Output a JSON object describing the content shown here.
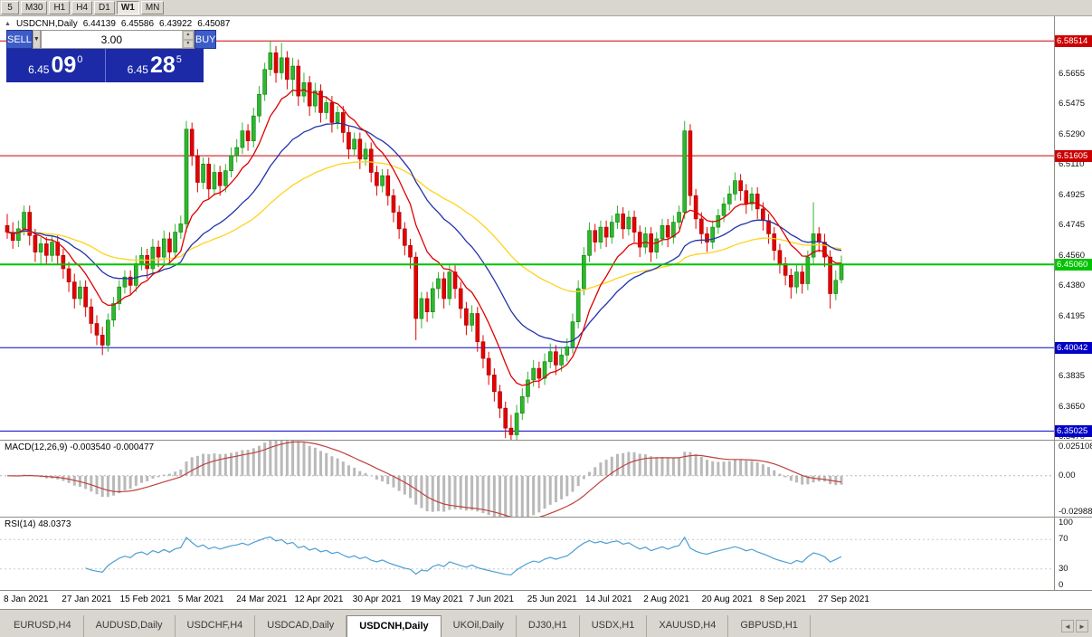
{
  "toolbar": {
    "timeframes": [
      "5",
      "M30",
      "H1",
      "H4",
      "D1",
      "W1",
      "MN"
    ],
    "active": "W1"
  },
  "chart_header": {
    "collapse_icon": "▲",
    "symbol": "USDCNH,Daily",
    "open": "6.44139",
    "high": "6.45586",
    "low": "6.43922",
    "close": "6.45087"
  },
  "trade_panel": {
    "sell_label": "SELL",
    "buy_label": "BUY",
    "volume": "3.00",
    "sell_price": {
      "base": "6.45",
      "big": "09",
      "sup": "0"
    },
    "buy_price": {
      "base": "6.45",
      "big": "28",
      "sup": "5"
    }
  },
  "icons": {
    "dropdown": "▼",
    "spin_up": "▲",
    "spin_down": "▼",
    "scroll_left": "◄",
    "scroll_right": "►"
  },
  "levels": [
    {
      "price": 6.58514,
      "label": "6.58514",
      "color": "#cc0000",
      "width": 1
    },
    {
      "price": 6.51605,
      "label": "6.51605",
      "color": "#cc0000",
      "width": 1
    },
    {
      "price": 6.4506,
      "label": "6.45060",
      "color": "#00c400",
      "width": 2,
      "top": true
    },
    {
      "price": 6.40042,
      "label": "6.40042",
      "color": "#0000c8",
      "width": 1
    },
    {
      "price": 6.35025,
      "label": "6.35025",
      "color": "#0000c8",
      "width": 1
    }
  ],
  "price_axis": {
    "ticks": [
      "6.5655",
      "6.5475",
      "6.5290",
      "6.5110",
      "6.4925",
      "6.4745",
      "6.4560",
      "6.4380",
      "6.4195",
      "6.3835",
      "6.3650",
      "6.3470"
    ]
  },
  "macd_panel": {
    "label": "MACD(12,26,9) -0.003540 -0.000477",
    "params": [
      12,
      26,
      9
    ],
    "values": [
      "-0.003540",
      "-0.000477"
    ],
    "scale": [
      -0.02988,
      0.025108
    ],
    "axis_labels": [
      {
        "v": 0.025108,
        "label": "0.025108"
      },
      {
        "v": 0,
        "label": "0.00"
      },
      {
        "v": -0.02988,
        "label": "-0.02988"
      }
    ],
    "histogram_color": "#b9b9b9",
    "signal_color": "#c04040"
  },
  "rsi_panel": {
    "label": "RSI(14) 48.0373",
    "period": 14,
    "value": "48.0373",
    "levels": [
      70,
      30
    ],
    "axis_labels": [
      {
        "v": 100,
        "label": "100"
      },
      {
        "v": 70,
        "label": "70"
      },
      {
        "v": 30,
        "label": "30"
      },
      {
        "v": 0,
        "label": "0"
      }
    ],
    "line_color": "#4b9fd4"
  },
  "date_axis": [
    "8 Jan 2021",
    "27 Jan 2021",
    "15 Feb 2021",
    "5 Mar 2021",
    "24 Mar 2021",
    "12 Apr 2021",
    "30 Apr 2021",
    "19 May 2021",
    "7 Jun 2021",
    "25 Jun 2021",
    "14 Jul 2021",
    "2 Aug 2021",
    "20 Aug 2021",
    "8 Sep 2021",
    "27 Sep 2021"
  ],
  "tabs": {
    "items": [
      "EURUSD,H4",
      "AUDUSD,Daily",
      "USDCHF,H4",
      "USDCAD,Daily",
      "USDCNH,Daily",
      "UKOil,Daily",
      "DJ30,H1",
      "USDX,H1",
      "XAUUSD,H4",
      "GBPUSD,H1"
    ],
    "active": "USDCNH,Daily"
  },
  "chart_data": {
    "type": "candlestick",
    "symbol": "USDCNH",
    "period": "Daily",
    "title": "USDCNH,Daily",
    "ylim": [
      6.345,
      6.6
    ],
    "up_color": "#2eb82e",
    "up_border": "#0b7a0b",
    "down_color": "#e60000",
    "down_border": "#990000",
    "moving_averages": [
      {
        "period": 55,
        "color": "#ffd21e"
      },
      {
        "period": 25,
        "color": "#2233aa"
      },
      {
        "period": 10,
        "color": "#e00000"
      }
    ],
    "candles": [
      [
        6.474,
        6.481,
        6.466,
        6.47
      ],
      [
        6.47,
        6.476,
        6.46,
        6.465
      ],
      [
        6.465,
        6.477,
        6.461,
        6.472
      ],
      [
        6.472,
        6.486,
        6.468,
        6.482
      ],
      [
        6.482,
        6.486,
        6.462,
        6.468
      ],
      [
        6.468,
        6.472,
        6.452,
        6.458
      ],
      [
        6.458,
        6.467,
        6.45,
        6.463
      ],
      [
        6.463,
        6.467,
        6.451,
        6.456
      ],
      [
        6.456,
        6.468,
        6.452,
        6.464
      ],
      [
        6.464,
        6.468,
        6.45,
        6.456
      ],
      [
        6.456,
        6.46,
        6.442,
        6.448
      ],
      [
        6.448,
        6.452,
        6.434,
        6.44
      ],
      [
        6.44,
        6.445,
        6.424,
        6.43
      ],
      [
        6.43,
        6.441,
        6.426,
        6.437
      ],
      [
        6.437,
        6.441,
        6.419,
        6.425
      ],
      [
        6.425,
        6.43,
        6.409,
        6.415
      ],
      [
        6.415,
        6.42,
        6.402,
        6.408
      ],
      [
        6.408,
        6.413,
        6.396,
        6.402
      ],
      [
        6.402,
        6.421,
        6.398,
        6.417
      ],
      [
        6.417,
        6.431,
        6.413,
        6.427
      ],
      [
        6.427,
        6.441,
        6.423,
        6.437
      ],
      [
        6.437,
        6.447,
        6.433,
        6.443
      ],
      [
        6.443,
        6.447,
        6.432,
        6.438
      ],
      [
        6.438,
        6.456,
        6.434,
        6.451
      ],
      [
        6.451,
        6.461,
        6.447,
        6.456
      ],
      [
        6.456,
        6.46,
        6.442,
        6.448
      ],
      [
        6.448,
        6.466,
        6.444,
        6.461
      ],
      [
        6.461,
        6.465,
        6.449,
        6.455
      ],
      [
        6.455,
        6.471,
        6.451,
        6.466
      ],
      [
        6.466,
        6.47,
        6.452,
        6.458
      ],
      [
        6.458,
        6.475,
        6.454,
        6.47
      ],
      [
        6.47,
        6.48,
        6.466,
        6.475
      ],
      [
        6.475,
        6.537,
        6.47,
        6.532
      ],
      [
        6.532,
        6.536,
        6.51,
        6.516
      ],
      [
        6.516,
        6.52,
        6.494,
        6.5
      ],
      [
        6.5,
        6.515,
        6.496,
        6.511
      ],
      [
        6.511,
        6.515,
        6.49,
        6.496
      ],
      [
        6.496,
        6.511,
        6.492,
        6.506
      ],
      [
        6.506,
        6.51,
        6.492,
        6.498
      ],
      [
        6.498,
        6.511,
        6.494,
        6.507
      ],
      [
        6.507,
        6.521,
        6.503,
        6.516
      ],
      [
        6.516,
        6.526,
        6.512,
        6.521
      ],
      [
        6.521,
        6.536,
        6.517,
        6.531
      ],
      [
        6.531,
        6.535,
        6.519,
        6.525
      ],
      [
        6.525,
        6.545,
        6.521,
        6.54
      ],
      [
        6.54,
        6.558,
        6.536,
        6.553
      ],
      [
        6.553,
        6.572,
        6.549,
        6.568
      ],
      [
        6.568,
        6.585,
        6.564,
        6.578
      ],
      [
        6.578,
        6.582,
        6.56,
        6.566
      ],
      [
        6.566,
        6.584,
        6.562,
        6.575
      ],
      [
        6.575,
        6.579,
        6.556,
        6.562
      ],
      [
        6.562,
        6.575,
        6.552,
        6.57
      ],
      [
        6.57,
        6.574,
        6.546,
        6.552
      ],
      [
        6.552,
        6.566,
        6.548,
        6.56
      ],
      [
        6.56,
        6.564,
        6.54,
        6.546
      ],
      [
        6.546,
        6.56,
        6.542,
        6.555
      ],
      [
        6.555,
        6.559,
        6.536,
        6.542
      ],
      [
        6.542,
        6.552,
        6.538,
        6.548
      ],
      [
        6.548,
        6.552,
        6.53,
        6.536
      ],
      [
        6.536,
        6.546,
        6.532,
        6.542
      ],
      [
        6.542,
        6.546,
        6.524,
        6.53
      ],
      [
        6.53,
        6.534,
        6.514,
        6.52
      ],
      [
        6.52,
        6.53,
        6.516,
        6.526
      ],
      [
        6.526,
        6.53,
        6.508,
        6.514
      ],
      [
        6.514,
        6.524,
        6.51,
        6.52
      ],
      [
        6.52,
        6.524,
        6.5,
        6.506
      ],
      [
        6.506,
        6.51,
        6.492,
        6.498
      ],
      [
        6.498,
        6.508,
        6.494,
        6.504
      ],
      [
        6.504,
        6.508,
        6.486,
        6.492
      ],
      [
        6.492,
        6.496,
        6.476,
        6.482
      ],
      [
        6.482,
        6.486,
        6.466,
        6.472
      ],
      [
        6.472,
        6.476,
        6.456,
        6.462
      ],
      [
        6.462,
        6.466,
        6.448,
        6.455
      ],
      [
        6.455,
        6.458,
        6.405,
        6.418
      ],
      [
        6.418,
        6.434,
        6.412,
        6.43
      ],
      [
        6.43,
        6.434,
        6.416,
        6.422
      ],
      [
        6.422,
        6.44,
        6.418,
        6.436
      ],
      [
        6.436,
        6.446,
        6.43,
        6.442
      ],
      [
        6.442,
        6.446,
        6.424,
        6.43
      ],
      [
        6.43,
        6.45,
        6.426,
        6.446
      ],
      [
        6.446,
        6.45,
        6.43,
        6.436
      ],
      [
        6.436,
        6.44,
        6.418,
        6.424
      ],
      [
        6.424,
        6.428,
        6.408,
        6.414
      ],
      [
        6.414,
        6.426,
        6.41,
        6.421
      ],
      [
        6.421,
        6.425,
        6.398,
        6.404
      ],
      [
        6.404,
        6.408,
        6.388,
        6.394
      ],
      [
        6.394,
        6.398,
        6.378,
        6.384
      ],
      [
        6.384,
        6.388,
        6.368,
        6.374
      ],
      [
        6.374,
        6.378,
        6.358,
        6.364
      ],
      [
        6.364,
        6.368,
        6.346,
        6.352
      ],
      [
        6.352,
        6.36,
        6.344,
        6.348
      ],
      [
        6.348,
        6.366,
        6.345,
        6.361
      ],
      [
        6.361,
        6.376,
        6.357,
        6.371
      ],
      [
        6.371,
        6.386,
        6.367,
        6.381
      ],
      [
        6.381,
        6.393,
        6.377,
        6.388
      ],
      [
        6.388,
        6.392,
        6.376,
        6.382
      ],
      [
        6.382,
        6.397,
        6.378,
        6.392
      ],
      [
        6.392,
        6.403,
        6.388,
        6.398
      ],
      [
        6.398,
        6.402,
        6.384,
        6.39
      ],
      [
        6.39,
        6.401,
        6.386,
        6.396
      ],
      [
        6.396,
        6.406,
        6.392,
        6.401
      ],
      [
        6.401,
        6.421,
        6.397,
        6.416
      ],
      [
        6.416,
        6.441,
        6.412,
        6.436
      ],
      [
        6.436,
        6.461,
        6.432,
        6.456
      ],
      [
        6.456,
        6.476,
        6.452,
        6.471
      ],
      [
        6.471,
        6.475,
        6.458,
        6.464
      ],
      [
        6.464,
        6.477,
        6.46,
        6.473
      ],
      [
        6.473,
        6.477,
        6.461,
        6.467
      ],
      [
        6.467,
        6.48,
        6.463,
        6.476
      ],
      [
        6.476,
        6.486,
        6.472,
        6.481
      ],
      [
        6.481,
        6.485,
        6.466,
        6.472
      ],
      [
        6.472,
        6.483,
        6.468,
        6.479
      ],
      [
        6.479,
        6.483,
        6.464,
        6.47
      ],
      [
        6.47,
        6.474,
        6.455,
        6.461
      ],
      [
        6.461,
        6.473,
        6.457,
        6.469
      ],
      [
        6.469,
        6.473,
        6.452,
        6.458
      ],
      [
        6.458,
        6.47,
        6.454,
        6.466
      ],
      [
        6.466,
        6.478,
        6.462,
        6.474
      ],
      [
        6.474,
        6.478,
        6.461,
        6.467
      ],
      [
        6.467,
        6.48,
        6.463,
        6.476
      ],
      [
        6.476,
        6.486,
        6.472,
        6.482
      ],
      [
        6.482,
        6.537,
        6.478,
        6.531
      ],
      [
        6.531,
        6.535,
        6.486,
        6.492
      ],
      [
        6.492,
        6.496,
        6.472,
        6.478
      ],
      [
        6.478,
        6.482,
        6.463,
        6.469
      ],
      [
        6.469,
        6.473,
        6.458,
        6.464
      ],
      [
        6.464,
        6.477,
        6.46,
        6.473
      ],
      [
        6.473,
        6.484,
        6.469,
        6.48
      ],
      [
        6.48,
        6.491,
        6.476,
        6.487
      ],
      [
        6.487,
        6.498,
        6.483,
        6.493
      ],
      [
        6.493,
        6.506,
        6.489,
        6.501
      ],
      [
        6.501,
        6.505,
        6.489,
        6.495
      ],
      [
        6.495,
        6.499,
        6.481,
        6.487
      ],
      [
        6.487,
        6.497,
        6.483,
        6.493
      ],
      [
        6.493,
        6.497,
        6.478,
        6.484
      ],
      [
        6.484,
        6.488,
        6.471,
        6.477
      ],
      [
        6.477,
        6.481,
        6.463,
        6.469
      ],
      [
        6.469,
        6.473,
        6.453,
        6.459
      ],
      [
        6.459,
        6.463,
        6.445,
        6.451
      ],
      [
        6.451,
        6.455,
        6.438,
        6.444
      ],
      [
        6.444,
        6.448,
        6.43,
        6.437
      ],
      [
        6.437,
        6.45,
        6.433,
        6.446
      ],
      [
        6.446,
        6.45,
        6.433,
        6.439
      ],
      [
        6.439,
        6.459,
        6.435,
        6.455
      ],
      [
        6.455,
        6.488,
        6.451,
        6.469
      ],
      [
        6.469,
        6.473,
        6.458,
        6.464
      ],
      [
        6.464,
        6.469,
        6.449,
        6.455
      ],
      [
        6.455,
        6.459,
        6.424,
        6.433
      ],
      [
        6.433,
        6.447,
        6.429,
        6.441
      ],
      [
        6.44139,
        6.45586,
        6.43922,
        6.45087
      ]
    ]
  }
}
